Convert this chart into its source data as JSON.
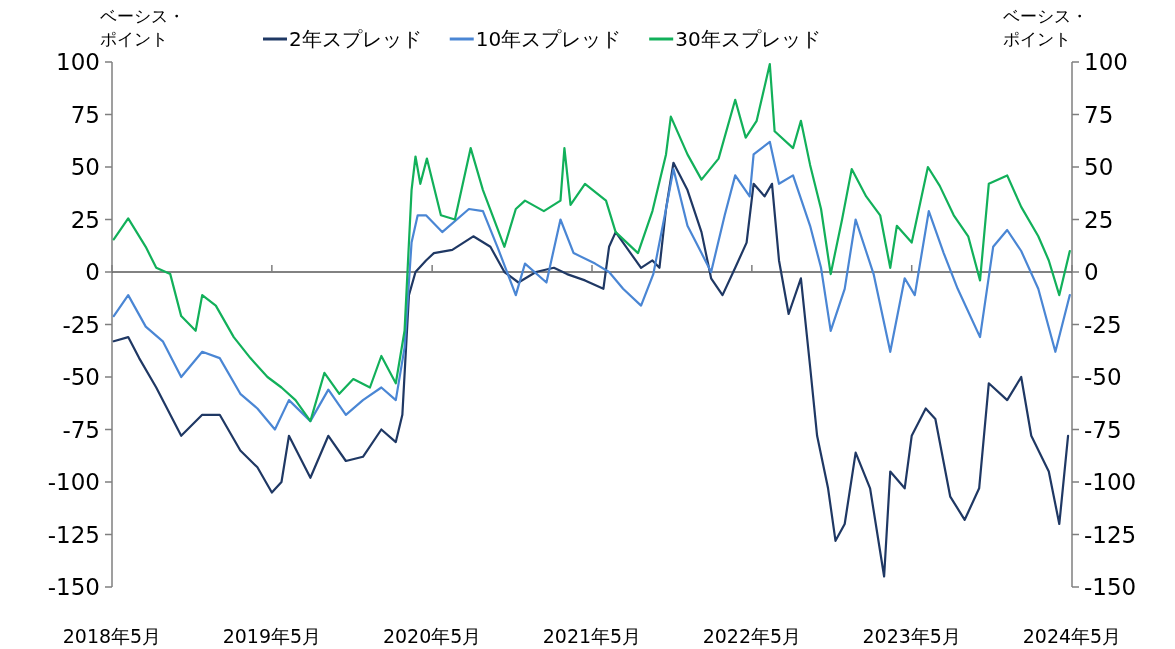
{
  "chart_data": {
    "type": "line",
    "ylabel": "ベーシス・ポイント",
    "y2label": "ベーシス・ポイント",
    "legend": "top",
    "line_style": "solid",
    "marker": "none",
    "xlim": [
      "2018-05-01",
      "2024-05-01"
    ],
    "xticks": [
      {
        "value": "2018-05-01",
        "label": "2018年5月"
      },
      {
        "value": "2019-05-01",
        "label": "2019年5月"
      },
      {
        "value": "2020-05-01",
        "label": "2020年5月"
      },
      {
        "value": "2021-05-01",
        "label": "2021年5月"
      },
      {
        "value": "2022-05-01",
        "label": "2022年5月"
      },
      {
        "value": "2023-05-01",
        "label": "2023年5月"
      },
      {
        "value": "2024-05-01",
        "label": "2024年5月"
      }
    ],
    "ylim": [
      -150,
      100
    ],
    "yticks": [
      -150,
      -125,
      -100,
      -75,
      -50,
      -25,
      0,
      25,
      50,
      75,
      100
    ],
    "y2lim": [
      -150,
      100
    ],
    "y2ticks": [
      -150,
      -125,
      -100,
      -75,
      -50,
      -25,
      0,
      25,
      50,
      75,
      100
    ],
    "series": [
      {
        "name": "2年スプレッド",
        "color": "#1f3864",
        "x": [
          "2018-05-05",
          "2018-06-07",
          "2018-07-02",
          "2018-08-10",
          "2018-10-06",
          "2018-11-23",
          "2019-01-02",
          "2019-02-18",
          "2019-03-29",
          "2019-05-01",
          "2019-05-23",
          "2019-06-09",
          "2019-07-28",
          "2019-09-07",
          "2019-10-17",
          "2019-11-25",
          "2020-01-06",
          "2020-02-08",
          "2020-02-23",
          "2020-03-09",
          "2020-03-24",
          "2020-04-17",
          "2020-05-05",
          "2020-06-16",
          "2020-08-03",
          "2020-09-11",
          "2020-10-13",
          "2020-11-14",
          "2020-12-24",
          "2021-02-03",
          "2021-03-05",
          "2021-04-15",
          "2021-05-27",
          "2021-06-09",
          "2021-06-24",
          "2021-07-28",
          "2021-08-21",
          "2021-09-16",
          "2021-10-02",
          "2021-10-17",
          "2021-11-03",
          "2021-12-05",
          "2022-01-06",
          "2022-01-28",
          "2022-02-23",
          "2022-03-24",
          "2022-04-19",
          "2022-05-05",
          "2022-05-30",
          "2022-06-16",
          "2022-07-02",
          "2022-07-24",
          "2022-08-21",
          "2022-09-11",
          "2022-09-27",
          "2022-10-22",
          "2022-11-08",
          "2022-11-29",
          "2022-12-24",
          "2023-01-26",
          "2023-02-27",
          "2023-03-13",
          "2023-04-15",
          "2023-05-01",
          "2023-06-02",
          "2023-06-24",
          "2023-07-28",
          "2023-08-30",
          "2023-10-02",
          "2023-10-24",
          "2023-12-05",
          "2024-01-06",
          "2024-01-29",
          "2024-03-09",
          "2024-04-02",
          "2024-04-22"
        ],
        "values": [
          -33,
          -31,
          -41,
          -55,
          -78,
          -68,
          -68,
          -85,
          -93,
          -105,
          -100,
          -78,
          -98,
          -78,
          -90,
          -88,
          -75,
          -81,
          -68,
          -11,
          0,
          5.5,
          9,
          10.5,
          17,
          12,
          0,
          -5,
          0,
          2,
          -1,
          -4,
          -8,
          12,
          19,
          9,
          2,
          5.5,
          2,
          30,
          52,
          39,
          19,
          -3,
          -11,
          2,
          14,
          42,
          36,
          42,
          5.5,
          -20,
          -3,
          -45,
          -78,
          -103,
          -128,
          -120,
          -86,
          -103,
          -145,
          -95,
          -103,
          -78,
          -65,
          -70,
          -107,
          -118,
          -103,
          -53,
          -61,
          -50,
          -78,
          -95,
          -120,
          -78
        ]
      },
      {
        "name": "10年スプレッド",
        "color": "#4a86d4",
        "x": [
          "2018-05-05",
          "2018-06-07",
          "2018-07-17",
          "2018-08-25",
          "2018-10-06",
          "2018-11-23",
          "2019-01-02",
          "2019-02-18",
          "2019-03-29",
          "2019-05-08",
          "2019-06-09",
          "2019-07-28",
          "2019-09-07",
          "2019-10-17",
          "2019-11-25",
          "2020-01-06",
          "2020-02-08",
          "2020-02-28",
          "2020-03-15",
          "2020-03-29",
          "2020-04-17",
          "2020-05-24",
          "2020-07-24",
          "2020-08-25",
          "2020-09-27",
          "2020-11-08",
          "2020-11-29",
          "2021-01-17",
          "2021-02-18",
          "2021-03-20",
          "2021-05-08",
          "2021-06-09",
          "2021-07-11",
          "2021-08-21",
          "2021-09-18",
          "2021-10-17",
          "2021-11-03",
          "2021-12-05",
          "2022-01-06",
          "2022-01-28",
          "2022-02-28",
          "2022-03-24",
          "2022-04-26",
          "2022-05-05",
          "2022-06-11",
          "2022-07-02",
          "2022-08-03",
          "2022-09-11",
          "2022-10-06",
          "2022-10-28",
          "2022-11-29",
          "2022-12-24",
          "2023-02-03",
          "2023-03-13",
          "2023-04-15",
          "2023-05-08",
          "2023-06-09",
          "2023-07-13",
          "2023-08-14",
          "2023-10-04",
          "2023-11-03",
          "2023-12-05",
          "2024-01-06",
          "2024-02-14",
          "2024-03-24",
          "2024-04-26"
        ],
        "values": [
          -21,
          -11,
          -26,
          -33,
          -50,
          -38,
          -41,
          -58,
          -65,
          -75,
          -61,
          -71,
          -56,
          -68,
          -61,
          -55,
          -61,
          -36,
          14,
          27,
          27,
          19,
          30,
          29,
          12,
          -11,
          4,
          -5,
          25,
          9,
          4,
          0,
          -8,
          -16,
          -1,
          30,
          49,
          22,
          9,
          0,
          27,
          46,
          36,
          56,
          62,
          42,
          46,
          22,
          2,
          -28,
          -8,
          25,
          -1,
          -38,
          -3,
          -11,
          29,
          9,
          -8,
          -31,
          12,
          20,
          10,
          -8,
          -38,
          -11
        ]
      },
      {
        "name": "30年スプレッド",
        "color": "#12b05a",
        "x": [
          "2018-05-05",
          "2018-06-07",
          "2018-07-17",
          "2018-08-10",
          "2018-09-11",
          "2018-10-06",
          "2018-11-08",
          "2018-11-23",
          "2018-12-24",
          "2019-02-03",
          "2019-03-13",
          "2019-04-21",
          "2019-05-23",
          "2019-06-24",
          "2019-07-28",
          "2019-08-29",
          "2019-10-02",
          "2019-11-03",
          "2019-12-11",
          "2020-01-06",
          "2020-02-08",
          "2020-02-28",
          "2020-03-15",
          "2020-03-24",
          "2020-04-04",
          "2020-04-19",
          "2020-05-21",
          "2020-06-22",
          "2020-07-28",
          "2020-08-25",
          "2020-10-13",
          "2020-11-08",
          "2020-11-29",
          "2021-01-11",
          "2021-02-18",
          "2021-02-27",
          "2021-03-13",
          "2021-04-15",
          "2021-06-02",
          "2021-06-24",
          "2021-08-14",
          "2021-09-16",
          "2021-10-17",
          "2021-10-28",
          "2021-12-05",
          "2022-01-06",
          "2022-02-14",
          "2022-03-24",
          "2022-04-17",
          "2022-05-12",
          "2022-06-11",
          "2022-06-22",
          "2022-08-03",
          "2022-08-21",
          "2022-09-11",
          "2022-10-06",
          "2022-10-28",
          "2022-11-23",
          "2022-12-15",
          "2023-01-17",
          "2023-02-18",
          "2023-03-13",
          "2023-03-28",
          "2023-05-01",
          "2023-06-07",
          "2023-07-04",
          "2023-08-05",
          "2023-09-07",
          "2023-10-04",
          "2023-10-24",
          "2023-12-05",
          "2024-01-06",
          "2024-02-14",
          "2024-03-09",
          "2024-04-02",
          "2024-04-26"
        ],
        "values": [
          15.5,
          25.5,
          12,
          2,
          -1,
          -21,
          -28,
          -11,
          -16,
          -31,
          -41,
          -50,
          -55,
          -61,
          -71,
          -48,
          -58,
          -51,
          -55,
          -40,
          -53,
          -28,
          39,
          55,
          42,
          54,
          27,
          25,
          59,
          39,
          12,
          30,
          34,
          29,
          34,
          59,
          32,
          42,
          34,
          19,
          9,
          29,
          56,
          74,
          56,
          44,
          54,
          82,
          64,
          72,
          99,
          67,
          59,
          72,
          51,
          30,
          -1,
          25,
          49,
          36,
          27,
          2,
          22,
          14,
          50,
          41,
          27,
          17,
          -4,
          42,
          46,
          31,
          17,
          5.5,
          -11,
          10
        ]
      }
    ]
  }
}
